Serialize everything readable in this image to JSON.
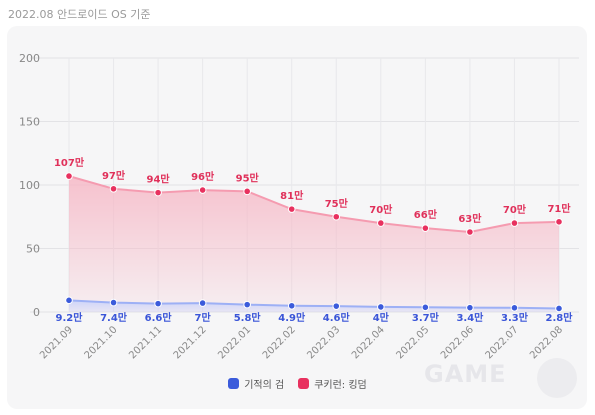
{
  "caption": "2022.08 안드로이드 OS 기준",
  "legend": {
    "series1": "기적의 검",
    "series2": "쿠키런: 킹덤"
  },
  "colors": {
    "series1": "#3b5bdb",
    "series2": "#e8315f",
    "fill2": "#f6b8c6",
    "fill1": "#c9d2fb"
  },
  "watermark": "GAME",
  "chart_data": {
    "type": "area",
    "title": "",
    "xlabel": "",
    "ylabel": "",
    "ylim": [
      0,
      200
    ],
    "yticks": [
      0,
      50,
      100,
      150,
      200
    ],
    "grid": true,
    "legend_position": "bottom",
    "categories": [
      "2021.09",
      "2021.10",
      "2021.11",
      "2021.12",
      "2022.01",
      "2022.02",
      "2022.03",
      "2022.04",
      "2022.05",
      "2022.06",
      "2022.07",
      "2022.08"
    ],
    "series": [
      {
        "name": "기적의 검",
        "values": [
          9.2,
          7.4,
          6.6,
          7,
          5.8,
          4.9,
          4.6,
          4,
          3.7,
          3.4,
          3.3,
          2.8
        ],
        "labels": [
          "9.2만",
          "7.4만",
          "6.6만",
          "7만",
          "5.8만",
          "4.9만",
          "4.6만",
          "4만",
          "3.7만",
          "3.4만",
          "3.3만",
          "2.8만"
        ]
      },
      {
        "name": "쿠키런: 킹덤",
        "values": [
          107,
          97,
          94,
          96,
          95,
          81,
          75,
          70,
          66,
          63,
          70,
          71
        ],
        "labels": [
          "107만",
          "97만",
          "94만",
          "96만",
          "95만",
          "81만",
          "75만",
          "70만",
          "66만",
          "63만",
          "70만",
          "71만"
        ]
      }
    ]
  }
}
